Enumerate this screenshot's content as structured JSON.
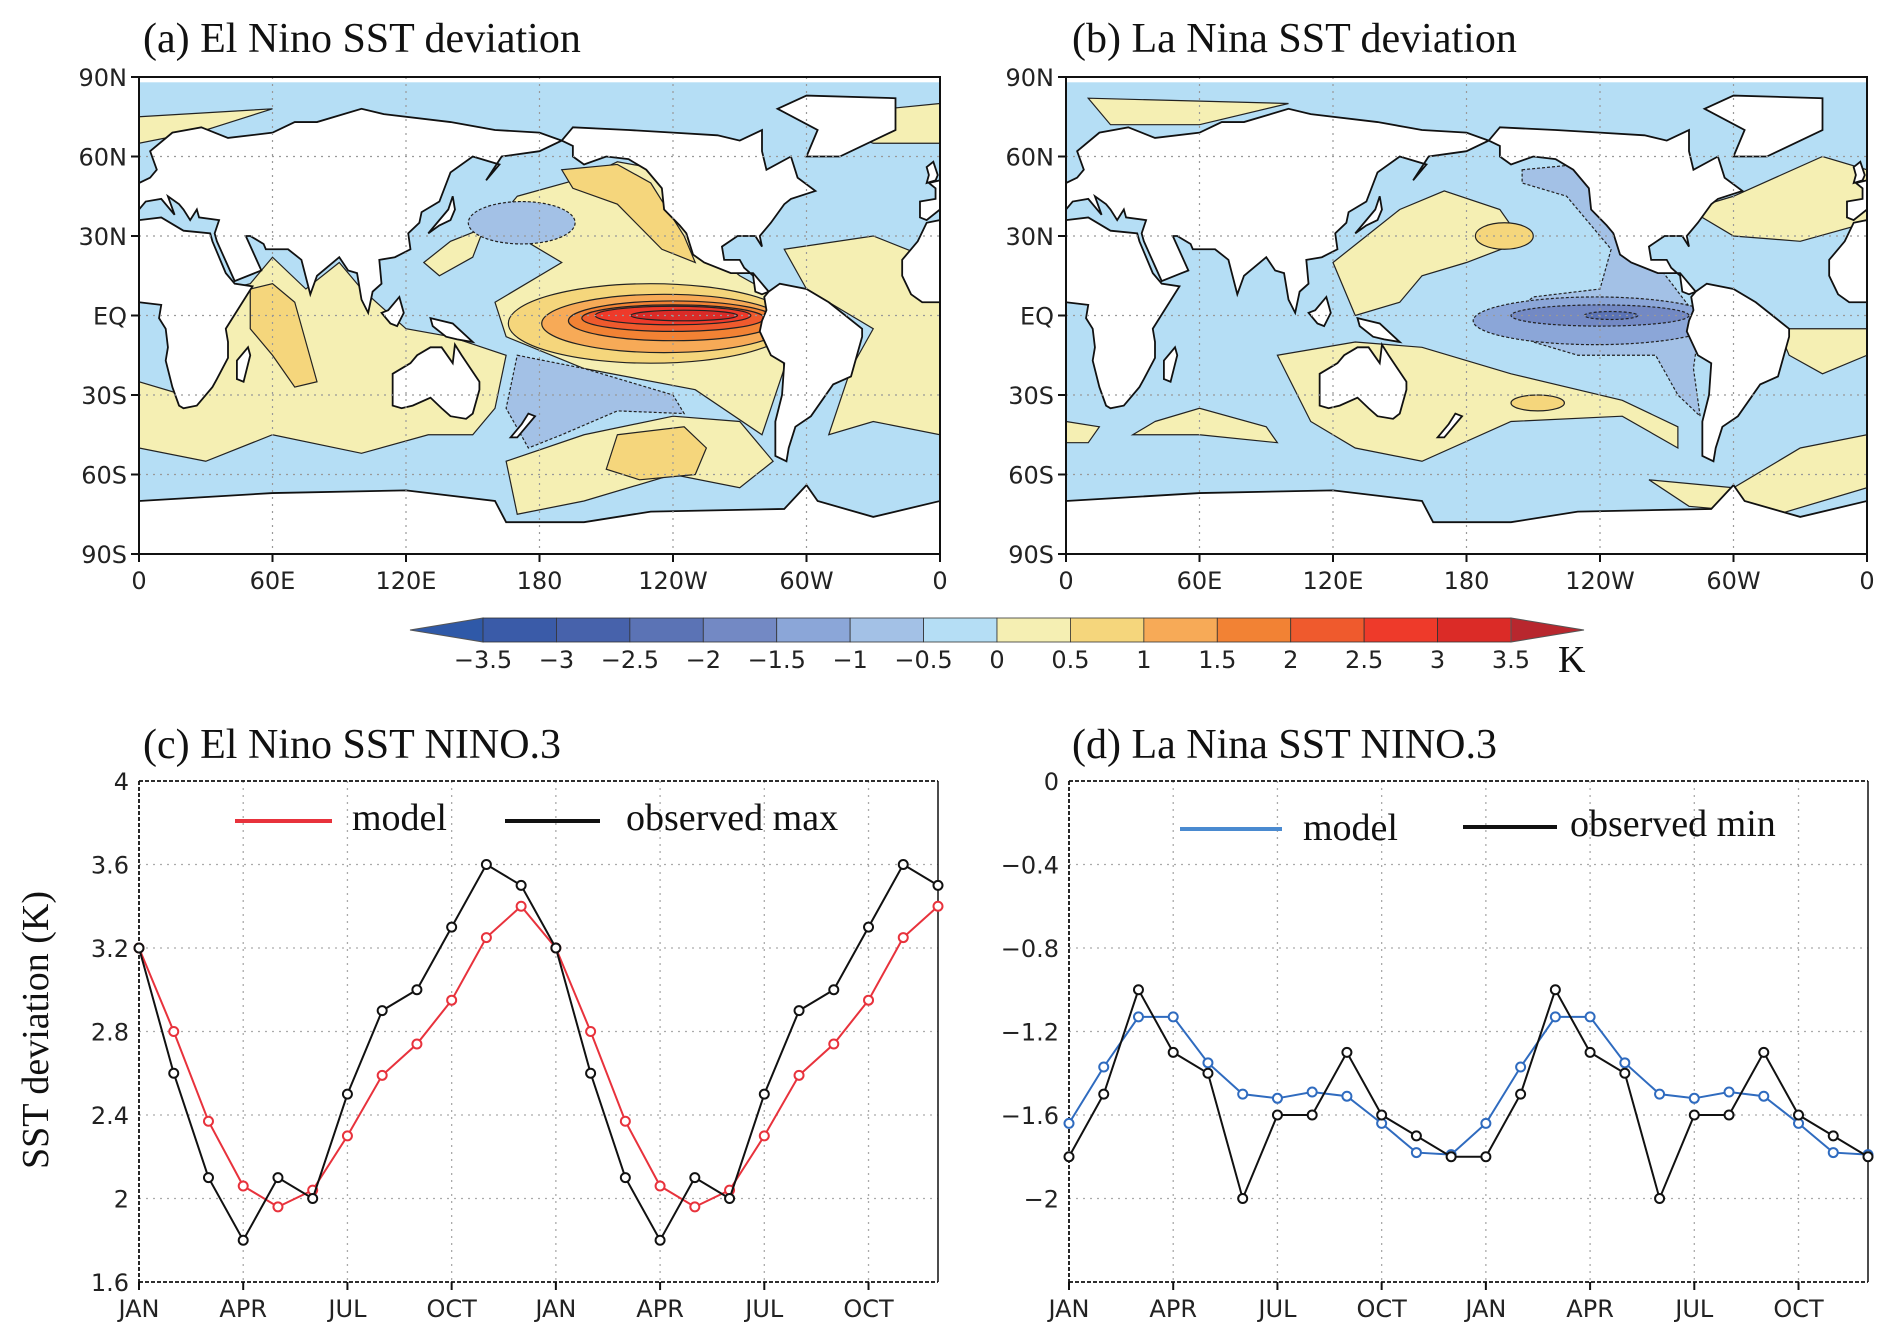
{
  "colors": {
    "ocean_zero_neg": "#b5def5",
    "colorbar": [
      "#2f59a8",
      "#3a5ba8",
      "#4762ab",
      "#5b73b5",
      "#7389c4",
      "#8ba6d8",
      "#a3c1e6",
      "#b5def5",
      "#f5efb3",
      "#f5d67c",
      "#f7aa57",
      "#f28234",
      "#ef5a2d",
      "#ee3a2a",
      "#db2b27",
      "#b8272e"
    ],
    "model_el_nino": "#e8323c",
    "model_la_nina": "#2f6bbf",
    "observed": "#111111"
  },
  "maps": [
    {
      "title": "(a) El Nino SST deviation",
      "type": "map"
    },
    {
      "title": "(b) La Nina SST deviation",
      "type": "map"
    }
  ],
  "map_axes": {
    "lat_ticks": [
      "90N",
      "60N",
      "30N",
      "EQ",
      "30S",
      "60S",
      "90S"
    ],
    "lon_ticks": [
      "0",
      "60E",
      "120E",
      "180",
      "120W",
      "60W",
      "0"
    ]
  },
  "colorbar": {
    "labels": [
      "−3.5",
      "−3",
      "−2.5",
      "−2",
      "−1.5",
      "−1",
      "−0.5",
      "0",
      "0.5",
      "1",
      "1.5",
      "2",
      "2.5",
      "3",
      "3.5"
    ],
    "unit": "K"
  },
  "chart_data": [
    {
      "type": "line",
      "title": "(c) El Nino SST NINO.3",
      "ylabel": "SST deviation (K)",
      "xlabel": "",
      "x_tick_labels": [
        "JAN",
        "APR",
        "JUL",
        "OCT",
        "JAN",
        "APR",
        "JUL",
        "OCT"
      ],
      "x": [
        "JAN",
        "FEB",
        "MAR",
        "APR",
        "MAY",
        "JUN",
        "JUL",
        "AUG",
        "SEP",
        "OCT",
        "NOV",
        "DEC",
        "JAN",
        "FEB",
        "MAR",
        "APR",
        "MAY",
        "JUN",
        "JUL",
        "AUG",
        "SEP",
        "OCT",
        "NOV",
        "DEC"
      ],
      "ylim": [
        1.6,
        4
      ],
      "y_tick_labels": [
        "1.6",
        "2",
        "2.4",
        "2.8",
        "3.2",
        "3.6",
        "4"
      ],
      "grid": true,
      "legend_position": "top",
      "series": [
        {
          "name": "model",
          "color": "#e8323c",
          "values": [
            3.2,
            2.8,
            2.37,
            2.06,
            1.96,
            2.04,
            2.3,
            2.59,
            2.74,
            2.95,
            3.25,
            3.4,
            3.2,
            2.8,
            2.37,
            2.06,
            1.96,
            2.04,
            2.3,
            2.59,
            2.74,
            2.95,
            3.25,
            3.4
          ]
        },
        {
          "name": "observed max",
          "color": "#111111",
          "values": [
            3.2,
            2.6,
            2.1,
            1.8,
            2.1,
            2.0,
            2.5,
            2.9,
            3.0,
            3.3,
            3.6,
            3.5,
            3.2,
            2.6,
            2.1,
            1.8,
            2.1,
            2.0,
            2.5,
            2.9,
            3.0,
            3.3,
            3.6,
            3.5
          ]
        }
      ]
    },
    {
      "type": "line",
      "title": "(d) La Nina SST NINO.3",
      "xlabel": "",
      "x_tick_labels": [
        "JAN",
        "APR",
        "JUL",
        "OCT",
        "JAN",
        "APR",
        "JUL",
        "OCT"
      ],
      "x": [
        "JAN",
        "FEB",
        "MAR",
        "APR",
        "MAY",
        "JUN",
        "JUL",
        "AUG",
        "SEP",
        "OCT",
        "NOV",
        "DEC",
        "JAN",
        "FEB",
        "MAR",
        "APR",
        "MAY",
        "JUN",
        "JUL",
        "AUG",
        "SEP",
        "OCT",
        "NOV",
        "DEC"
      ],
      "ylim": [
        -2.4,
        0
      ],
      "y_tick_labels": [
        "−2",
        "−1.6",
        "−1.2",
        "−0.8",
        "−0.4",
        "0"
      ],
      "grid": true,
      "legend_position": "top",
      "series": [
        {
          "name": "model",
          "color": "#2f6bbf",
          "values": [
            -1.64,
            -1.37,
            -1.13,
            -1.13,
            -1.35,
            -1.5,
            -1.52,
            -1.49,
            -1.51,
            -1.64,
            -1.78,
            -1.79,
            -1.64,
            -1.37,
            -1.13,
            -1.13,
            -1.35,
            -1.5,
            -1.52,
            -1.49,
            -1.51,
            -1.64,
            -1.78,
            -1.79
          ]
        },
        {
          "name": "observed min",
          "color": "#111111",
          "values": [
            -1.8,
            -1.5,
            -1.0,
            -1.3,
            -1.4,
            -2.0,
            -1.6,
            -1.6,
            -1.3,
            -1.6,
            -1.7,
            -1.8,
            -1.8,
            -1.5,
            -1.0,
            -1.3,
            -1.4,
            -2.0,
            -1.6,
            -1.6,
            -1.3,
            -1.6,
            -1.7,
            -1.8
          ]
        }
      ]
    }
  ]
}
